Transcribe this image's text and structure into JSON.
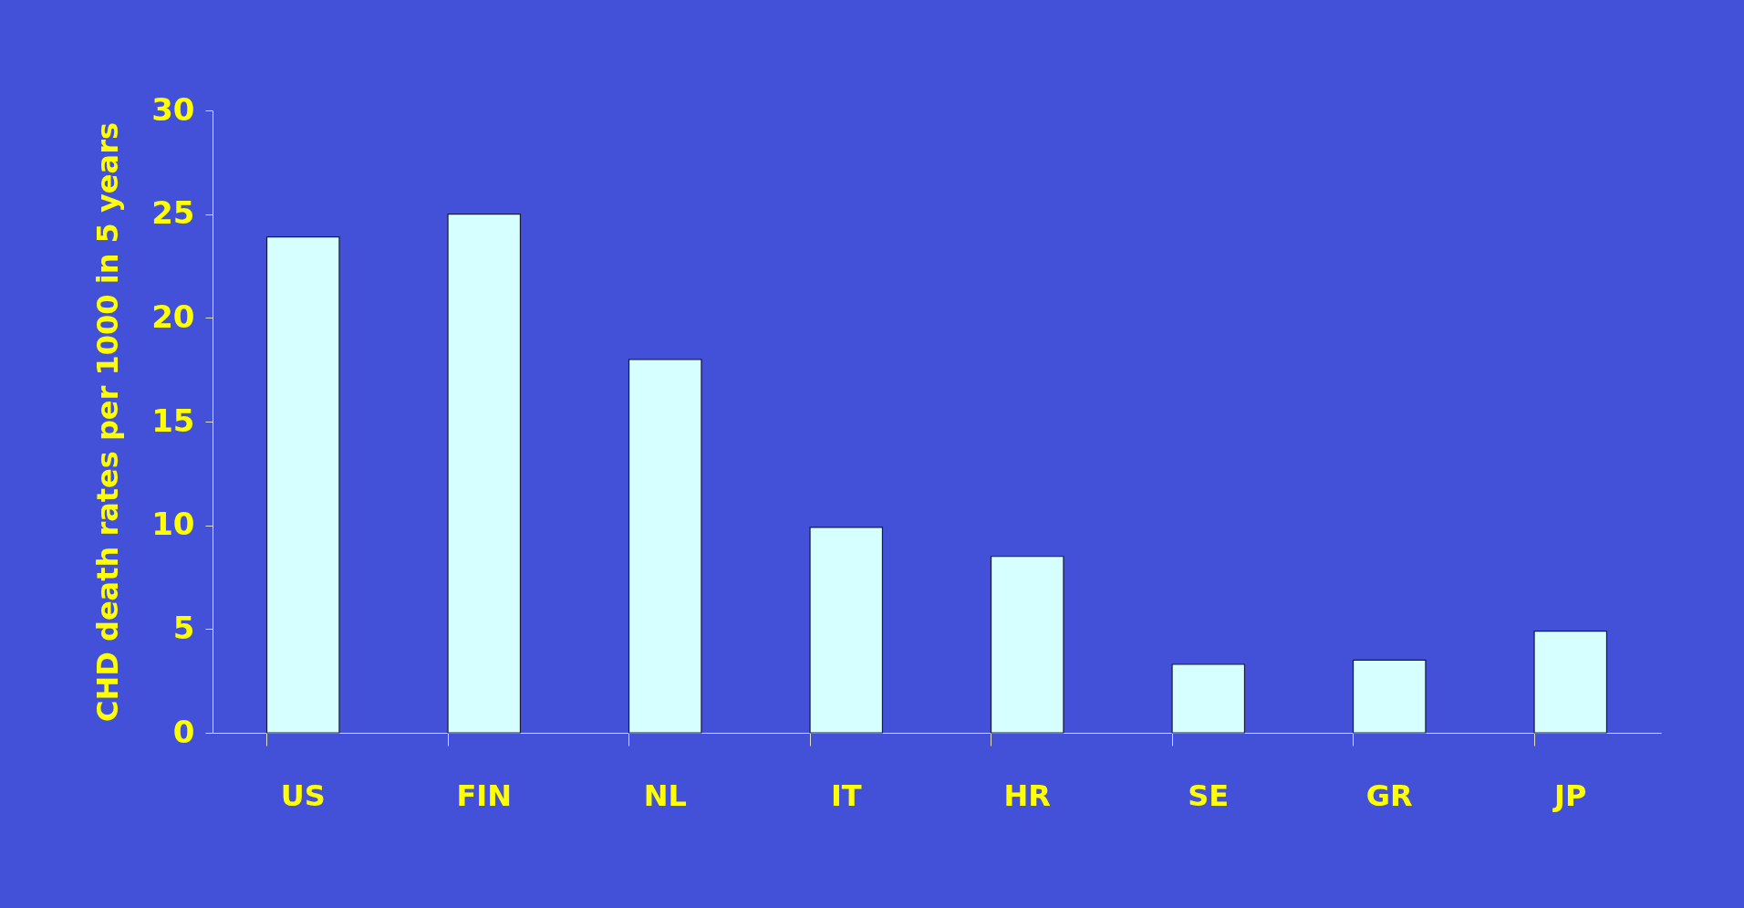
{
  "chart_data": {
    "type": "bar",
    "ylabel": "CHD death rates per 1000 in 5 years",
    "categories": [
      "US",
      "FIN",
      "NL",
      "IT",
      "HR",
      "SE",
      "GR",
      "JP"
    ],
    "values": [
      23.9,
      25.0,
      18.0,
      9.9,
      8.5,
      3.3,
      3.5,
      4.9
    ],
    "color": "#d6ffff",
    "ylim": [
      0,
      30
    ],
    "yticks": [
      0,
      5,
      10,
      15,
      20,
      25,
      30
    ]
  }
}
